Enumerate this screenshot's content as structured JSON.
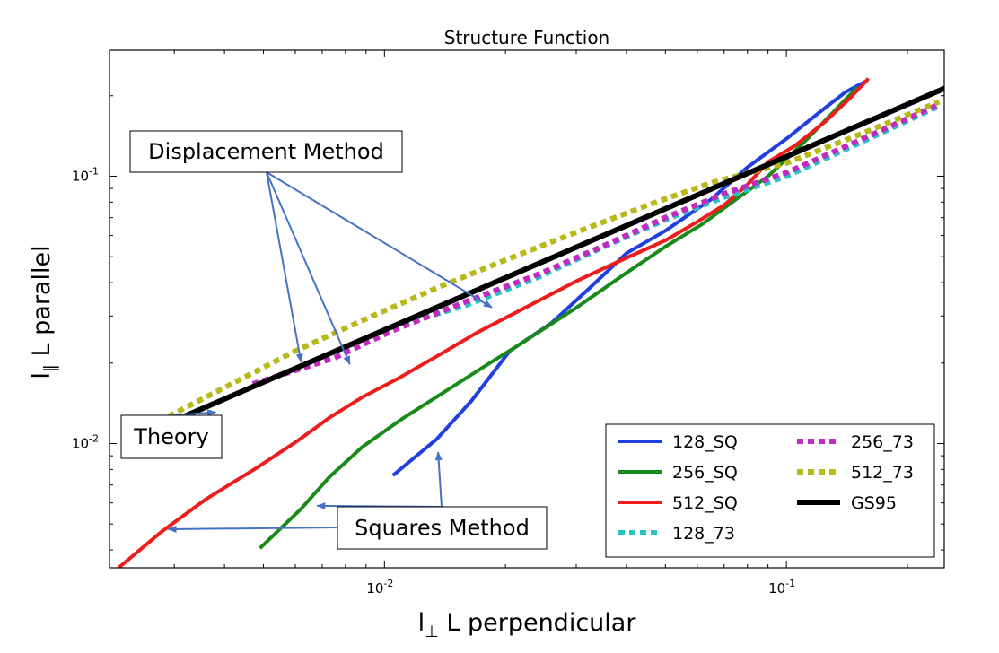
{
  "chart_data": {
    "type": "line",
    "title": "Structure Function",
    "xlabel": {
      "main": "l",
      "sub": "⊥",
      "rest": " L perpendicular"
    },
    "ylabel": {
      "main": "l",
      "sub": "∥",
      "rest": " L parallel"
    },
    "xscale": "log",
    "yscale": "log",
    "xlim": [
      0.00207,
      0.247
    ],
    "ylim": [
      0.00343,
      0.296
    ],
    "x_ticks": [
      {
        "value": 0.01,
        "mant": "10",
        "exp": "-2"
      },
      {
        "value": 0.1,
        "mant": "10",
        "exp": "-1"
      }
    ],
    "y_ticks": [
      {
        "value": 0.01,
        "mant": "10",
        "exp": "-2"
      },
      {
        "value": 0.1,
        "mant": "10",
        "exp": "-1"
      }
    ],
    "legend_position": "lower-right",
    "series": [
      {
        "name": "128_SQ",
        "color": "#1f3fe0",
        "style": "solid",
        "x": [
          0.0105,
          0.0135,
          0.0165,
          0.0205,
          0.026,
          0.032,
          0.04,
          0.05,
          0.065,
          0.08,
          0.1,
          0.12,
          0.14,
          0.158
        ],
        "y": [
          0.0076,
          0.0104,
          0.0145,
          0.0222,
          0.0282,
          0.0375,
          0.0515,
          0.0625,
          0.082,
          0.108,
          0.138,
          0.172,
          0.206,
          0.227
        ]
      },
      {
        "name": "256_SQ",
        "color": "#188a18",
        "style": "solid",
        "x": [
          0.0049,
          0.0062,
          0.0073,
          0.0088,
          0.011,
          0.014,
          0.018,
          0.022,
          0.03,
          0.04,
          0.05,
          0.062,
          0.075,
          0.09,
          0.11,
          0.13,
          0.15
        ],
        "y": [
          0.00406,
          0.0057,
          0.0075,
          0.0097,
          0.0123,
          0.0155,
          0.0197,
          0.0238,
          0.0322,
          0.0435,
          0.0545,
          0.0665,
          0.082,
          0.1,
          0.133,
          0.172,
          0.215
        ]
      },
      {
        "name": "512_SQ",
        "color": "#ee1c1c",
        "style": "solid",
        "x": [
          0.00218,
          0.0028,
          0.0036,
          0.0048,
          0.006,
          0.0073,
          0.0088,
          0.0108,
          0.0135,
          0.017,
          0.022,
          0.03,
          0.04,
          0.05,
          0.06,
          0.07,
          0.08,
          0.09,
          0.105,
          0.125,
          0.145,
          0.16
        ],
        "y": [
          0.00343,
          0.0047,
          0.0062,
          0.0081,
          0.0101,
          0.0125,
          0.0149,
          0.0175,
          0.0212,
          0.026,
          0.0318,
          0.0405,
          0.0495,
          0.0575,
          0.0675,
          0.078,
          0.093,
          0.113,
          0.13,
          0.16,
          0.198,
          0.232
        ]
      },
      {
        "name": "128_73",
        "color": "#22c4c4",
        "style": "dotted",
        "x": [
          0.0105,
          0.016,
          0.024,
          0.035,
          0.05,
          0.07,
          0.1,
          0.15,
          0.24
        ],
        "y": [
          0.0272,
          0.033,
          0.0418,
          0.0543,
          0.0688,
          0.0835,
          0.1,
          0.132,
          0.183
        ]
      },
      {
        "name": "256_73",
        "color": "#c02ac0",
        "style": "dotted",
        "x": [
          0.0047,
          0.0075,
          0.0105,
          0.016,
          0.024,
          0.035,
          0.05,
          0.07,
          0.1,
          0.15,
          0.24
        ],
        "y": [
          0.0167,
          0.0209,
          0.0265,
          0.034,
          0.0428,
          0.0548,
          0.07,
          0.086,
          0.103,
          0.135,
          0.186
        ]
      },
      {
        "name": "512_73",
        "color": "#b8b818",
        "style": "dotted",
        "x": [
          0.0026,
          0.004,
          0.006,
          0.009,
          0.0135,
          0.02,
          0.03,
          0.045,
          0.065,
          0.1,
          0.15,
          0.24
        ],
        "y": [
          0.0116,
          0.0162,
          0.0222,
          0.0293,
          0.0382,
          0.0486,
          0.0617,
          0.0778,
          0.0945,
          0.112,
          0.142,
          0.19
        ]
      },
      {
        "name": "GS95",
        "color": "#000000",
        "style": "solid",
        "x": [
          0.0026,
          0.248
        ],
        "y": [
          0.0111,
          0.2135
        ]
      }
    ],
    "annotations": [
      {
        "text": "Displacement Method",
        "targets": [
          [
            0.0062,
            0.0202
          ],
          [
            0.0082,
            0.0198
          ],
          [
            0.0185,
            0.0323
          ]
        ]
      },
      {
        "text": "Theory",
        "targets": [
          [
            0.0038,
            0.0131
          ]
        ]
      },
      {
        "text": "Squares Method",
        "targets": [
          [
            0.0029,
            0.00478
          ],
          [
            0.0068,
            0.00585
          ],
          [
            0.0136,
            0.00928
          ]
        ]
      }
    ]
  }
}
